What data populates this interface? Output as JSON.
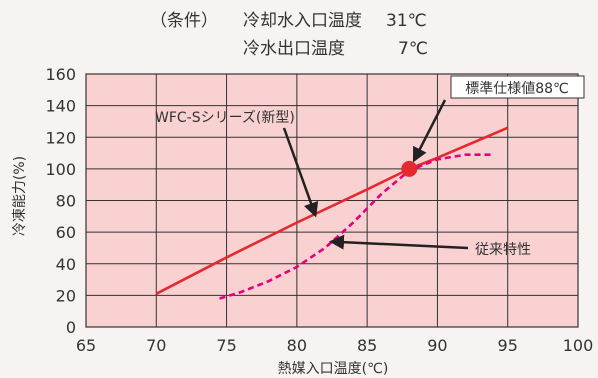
{
  "conditions": {
    "heading": "（条件）",
    "row1_label": "冷却水入口温度",
    "row1_value": "31℃",
    "row2_label": "冷水出口温度",
    "row2_value": "7℃"
  },
  "chart_data": {
    "type": "line",
    "xlabel": "熱媒入口温度(℃)",
    "ylabel": "冷凍能力(%)",
    "xlim": [
      65,
      100
    ],
    "ylim": [
      0,
      160
    ],
    "x_ticks": [
      65,
      70,
      75,
      80,
      85,
      90,
      95,
      100
    ],
    "y_ticks": [
      0,
      20,
      40,
      60,
      80,
      100,
      120,
      140,
      160
    ],
    "grid": true,
    "colors": {
      "plot_bg": "#f9d1d1",
      "new_series": "#e5292e",
      "old_series": "#e4007f"
    },
    "series": [
      {
        "name": "WFC-Sシリーズ(新型)",
        "style": "solid",
        "x": [
          70,
          75,
          80,
          85,
          88,
          90,
          95
        ],
        "y": [
          21,
          44,
          66,
          87,
          100,
          107,
          126
        ]
      },
      {
        "name": "従来特性",
        "style": "dashed",
        "x": [
          74.5,
          76,
          78,
          80,
          82,
          84,
          86,
          88,
          90,
          92,
          94
        ],
        "y": [
          18,
          22,
          29,
          38,
          50,
          66,
          84,
          99,
          106,
          109,
          109
        ]
      }
    ],
    "marker": {
      "x": 88,
      "y": 100,
      "label": "標準仕様値88℃"
    },
    "annotations": [
      {
        "text": "WFC-Sシリーズ(新型)",
        "target": "new"
      },
      {
        "text": "従来特性",
        "target": "old"
      }
    ]
  }
}
